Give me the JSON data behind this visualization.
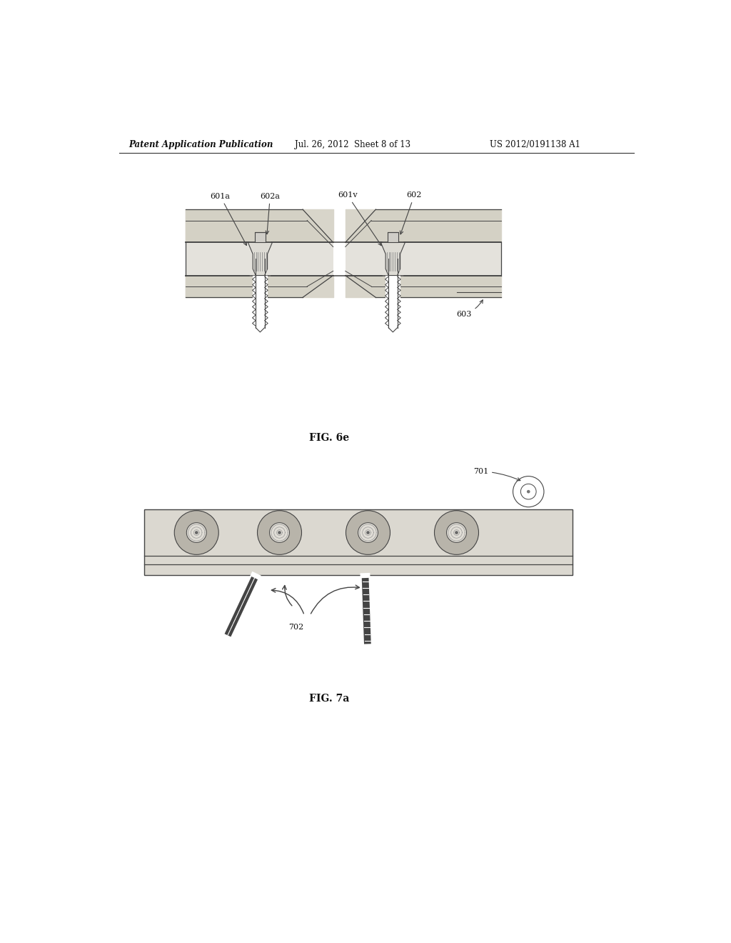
{
  "bg_color": "#ffffff",
  "header_text": "Patent Application Publication",
  "header_date": "Jul. 26, 2012  Sheet 8 of 13",
  "header_patent": "US 2012/0191138 A1",
  "fig6e_label": "FIG. 6e",
  "fig7a_label": "FIG. 7a",
  "dark_line": "#444444",
  "med_line": "#777777",
  "light_fill": "#e8e6e0",
  "bone_fill": "#d4d0c4",
  "plate_fill": "#e0ddd6"
}
